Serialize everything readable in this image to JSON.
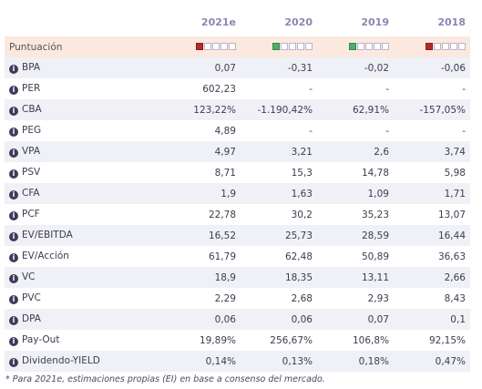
{
  "columns": [
    "",
    "2021e",
    "2020",
    "2019",
    "2018"
  ],
  "score_row": {
    "label": "Puntuación",
    "colors": {
      "red": "#b72a2a",
      "green": "#4ab06a"
    },
    "ratings": [
      {
        "filled": 1,
        "of": 5,
        "color": "red"
      },
      {
        "filled": 1,
        "of": 5,
        "color": "green"
      },
      {
        "filled": 1,
        "of": 5,
        "color": "green"
      },
      {
        "filled": 1,
        "of": 5,
        "color": "red"
      }
    ]
  },
  "rows": [
    {
      "label": "BPA",
      "values": [
        "0,07",
        "-0,31",
        "-0,02",
        "-0,06"
      ]
    },
    {
      "label": "PER",
      "values": [
        "602,23",
        "-",
        "-",
        "-"
      ]
    },
    {
      "label": "CBA",
      "values": [
        "123,22%",
        "-1.190,42%",
        "62,91%",
        "-157,05%"
      ]
    },
    {
      "label": "PEG",
      "values": [
        "4,89",
        "-",
        "-",
        "-"
      ]
    },
    {
      "label": "VPA",
      "values": [
        "4,97",
        "3,21",
        "2,6",
        "3,74"
      ]
    },
    {
      "label": "PSV",
      "values": [
        "8,71",
        "15,3",
        "14,78",
        "5,98"
      ]
    },
    {
      "label": "CFA",
      "values": [
        "1,9",
        "1,63",
        "1,09",
        "1,71"
      ]
    },
    {
      "label": "PCF",
      "values": [
        "22,78",
        "30,2",
        "35,23",
        "13,07"
      ]
    },
    {
      "label": "EV/EBITDA",
      "values": [
        "16,52",
        "25,73",
        "28,59",
        "16,44"
      ]
    },
    {
      "label": "EV/Acción",
      "values": [
        "61,79",
        "62,48",
        "50,89",
        "36,63"
      ]
    },
    {
      "label": "VC",
      "values": [
        "18,9",
        "18,35",
        "13,11",
        "2,66"
      ]
    },
    {
      "label": "PVC",
      "values": [
        "2,29",
        "2,68",
        "2,93",
        "8,43"
      ]
    },
    {
      "label": "DPA",
      "values": [
        "0,06",
        "0,06",
        "0,07",
        "0,1"
      ]
    },
    {
      "label": "Pay-Out",
      "values": [
        "19,89%",
        "256,67%",
        "106,8%",
        "92,15%"
      ]
    },
    {
      "label": "Dividendo-YIELD",
      "values": [
        "0,14%",
        "0,13%",
        "0,18%",
        "0,47%"
      ]
    }
  ],
  "info_icon_glyph": "i",
  "footnote": "* Para 2021e, estimaciones propias (EI) en base a consenso del mercado."
}
